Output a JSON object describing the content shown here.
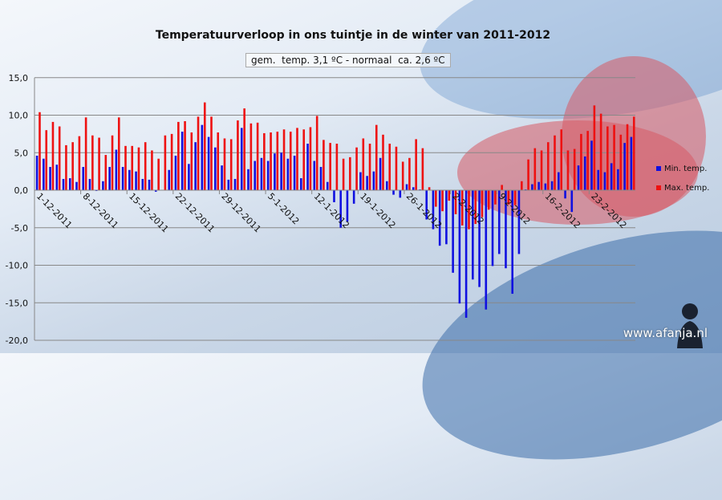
{
  "title": "Temperatuurverloop in ons tuintje in de winter van 2011-2012",
  "subtitle": "gem.  temp. 3,1 ºC - normaal  ca. 2,6 ºC",
  "watermark": "www.afanja.nl",
  "colors": {
    "min": "#1010e0",
    "max": "#ee1111"
  },
  "chart_data": {
    "type": "bar",
    "ylim": [
      -20,
      15
    ],
    "yticks": [
      "15,0",
      "10,0",
      "5,0",
      "0,0",
      "-5,0",
      "-10,0",
      "-15,0",
      "-20,0"
    ],
    "ytick_values": [
      15,
      10,
      5,
      0,
      -5,
      -10,
      -15,
      -20
    ],
    "grid": true,
    "legend": "right",
    "xtick_labels": [
      "1-12-2011",
      "8-12-2011",
      "15-12-2011",
      "22-12-2011",
      "29-12-2011",
      "5-1-2012",
      "12-1-2012",
      "19-1-2012",
      "26-1-2012",
      "2-2-2012",
      "9-2-2012",
      "16-2-2012",
      "23-2-2012"
    ],
    "xtick_every_days": 7,
    "series": [
      {
        "name": "Min. temp.",
        "values": [
          4.6,
          4.2,
          3.1,
          3.4,
          1.5,
          1.6,
          1.1,
          3.1,
          1.5,
          -0.1,
          1.2,
          3.1,
          5.4,
          3.1,
          2.7,
          2.5,
          1.5,
          1.4,
          -0.2,
          0,
          2.7,
          4.6,
          7.8,
          3.5,
          6.4,
          8.7,
          7.1,
          5.7,
          3.3,
          1.4,
          1.5,
          8.3,
          2.8,
          3.9,
          4.3,
          3.9,
          4.9,
          5.0,
          4.2,
          4.6,
          1.6,
          6.2,
          3.9,
          3.1,
          1.1,
          -1.6,
          -5.0,
          -4.2,
          -1.8,
          2.4,
          1.9,
          2.5,
          4.3,
          1.2,
          -0.6,
          -1.0,
          0.8,
          0.4,
          0.1,
          -3.9,
          -5.2,
          -7.4,
          -7.2,
          -11.0,
          -15.1,
          -17.0,
          -11.9,
          -12.9,
          -15.9,
          -10.1,
          -8.5,
          -10.4,
          -13.8,
          -8.5,
          0.1,
          0.8,
          1.1,
          0.9,
          1.2,
          2.4,
          -1.1,
          -2.9,
          3.3,
          4.5,
          6.6,
          2.7,
          2.4,
          3.6,
          2.8,
          6.3,
          7.1
        ]
      },
      {
        "name": "Max. temp.",
        "values": [
          10.4,
          8.0,
          9.1,
          8.5,
          6.0,
          6.4,
          7.2,
          9.7,
          7.3,
          7.0,
          4.7,
          7.3,
          9.7,
          5.9,
          5.9,
          5.7,
          6.4,
          5.3,
          4.2,
          7.3,
          7.5,
          9.1,
          9.2,
          7.7,
          9.8,
          11.7,
          9.8,
          7.7,
          6.9,
          6.8,
          9.3,
          10.9,
          8.9,
          9.0,
          7.6,
          7.7,
          7.8,
          8.1,
          7.8,
          8.3,
          8.1,
          8.4,
          9.9,
          6.7,
          6.3,
          6.2,
          4.2,
          4.4,
          5.7,
          6.9,
          6.2,
          8.7,
          7.4,
          6.2,
          5.8,
          3.8,
          4.3,
          6.8,
          5.6,
          0.4,
          -2.2,
          -2.8,
          -1.4,
          -3.2,
          -4.7,
          -5.2,
          -4.5,
          -3.6,
          -2.6,
          -1.9,
          0.7,
          -1.9,
          -2.0,
          1.2,
          4.1,
          5.6,
          5.3,
          6.4,
          7.3,
          8.1,
          5.3,
          5.5,
          7.5,
          7.9,
          11.3,
          10.2,
          8.5,
          8.7,
          7.4,
          8.8,
          9.8
        ]
      }
    ]
  }
}
